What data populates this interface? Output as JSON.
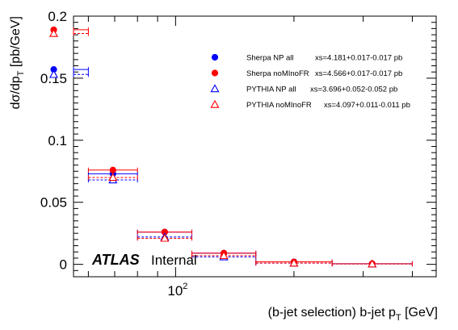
{
  "chart_data": {
    "type": "scatter",
    "title": "",
    "xlabel": "(b-jet selection) b-jet p",
    "xlabel_sub": "T",
    "xlabel_unit": " [GeV]",
    "ylabel": "dσ/dp",
    "ylabel_sub": "T",
    "ylabel_unit": " [pb/GeV]",
    "xscale": "log",
    "xlim": [
      55,
      460
    ],
    "ylim": [
      -0.01,
      0.2
    ],
    "x_tick_labels": [
      {
        "value": 100,
        "base": "10",
        "exp": "2"
      }
    ],
    "y_ticks": [
      0,
      0.05,
      0.1,
      0.15,
      0.2
    ],
    "y_tick_labels": [
      "0",
      "0.05",
      "0.1",
      "0.15",
      "0.2"
    ],
    "bins": [
      [
        40,
        60
      ],
      [
        60,
        80
      ],
      [
        80,
        110
      ],
      [
        110,
        160
      ],
      [
        160,
        250
      ],
      [
        250,
        400
      ]
    ],
    "series": [
      {
        "name": "Sherpa NP all",
        "xs_label": "xs=4.181+0.017-0.017 pb",
        "marker": "filled-circle",
        "color": "#0000ff",
        "line_style": "solid",
        "values": [
          0.157,
          0.073,
          0.026,
          0.009,
          0.002,
          0.0005
        ]
      },
      {
        "name": "Sherpa noMInoFR",
        "xs_label": "xs=4.566+0.017-0.017 pb",
        "marker": "filled-circle",
        "color": "#ff0000",
        "line_style": "solid",
        "values": [
          0.189,
          0.076,
          0.026,
          0.009,
          0.002,
          0.0005
        ]
      },
      {
        "name": "PYTHIA NP all",
        "xs_label": "xs=3.696+0.052-0.052 pb",
        "marker": "open-triangle",
        "color": "#0000ff",
        "line_style": "dashed",
        "values": [
          0.153,
          0.068,
          0.022,
          0.006,
          0.001,
          0.0003
        ]
      },
      {
        "name": "PYTHIA noMInoFR",
        "xs_label": "xs=4.097+0.011-0.011 pb",
        "marker": "open-triangle",
        "color": "#ff0000",
        "line_style": "dashed",
        "values": [
          0.186,
          0.07,
          0.021,
          0.007,
          0.001,
          0.0003
        ]
      }
    ],
    "legend_position": "top-right",
    "grid": false
  },
  "annotation": {
    "atlas": "ATLAS",
    "internal": "Internal"
  }
}
